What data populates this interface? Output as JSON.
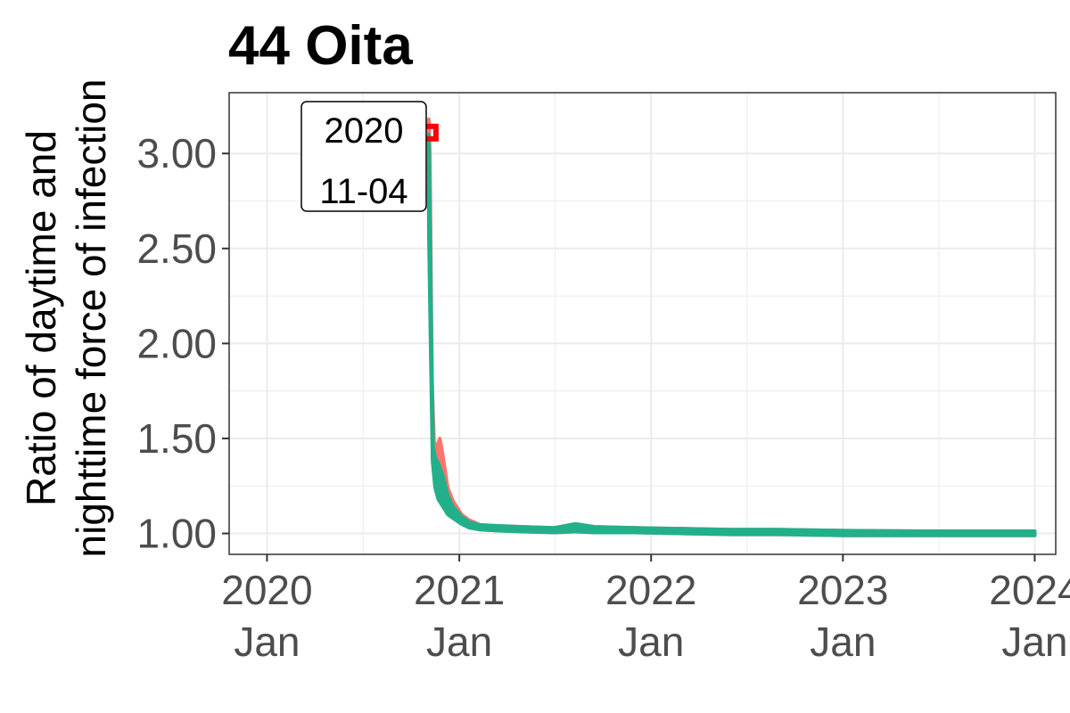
{
  "chart_data": {
    "type": "line",
    "title": "44 Oita",
    "ylabel_lines": [
      "Ratio of daytime and",
      "nighttime force of infection"
    ],
    "xlabel": "",
    "x_ticks": [
      {
        "date": "2020-01-01",
        "line1": "2020",
        "line2": "Jan"
      },
      {
        "date": "2021-01-01",
        "line1": "2021",
        "line2": "Jan"
      },
      {
        "date": "2022-01-01",
        "line1": "2022",
        "line2": "Jan"
      },
      {
        "date": "2023-01-01",
        "line1": "2023",
        "line2": "Jan"
      },
      {
        "date": "2024-01-01",
        "line1": "2024",
        "line2": "Jan"
      }
    ],
    "y_ticks": [
      {
        "value": 1.0,
        "label": "1.00"
      },
      {
        "value": 1.5,
        "label": "1.50"
      },
      {
        "value": 2.0,
        "label": "2.00"
      },
      {
        "value": 2.5,
        "label": "2.50"
      },
      {
        "value": 3.0,
        "label": "3.00"
      }
    ],
    "xlim": [
      "2019-10-21",
      "2024-02-10"
    ],
    "ylim": [
      0.89,
      3.32
    ],
    "grid": true,
    "legend": "none",
    "colors": {
      "band_red": "#f8766d",
      "band_teal": "#22b08a",
      "peak_marker": "#ff0000",
      "panel_border": "#333333",
      "grid": "#ebebeb"
    },
    "annotation": {
      "lines": [
        "2020",
        "11-04"
      ],
      "point": {
        "date": "2020-11-04",
        "value": 3.11
      }
    },
    "series": [
      {
        "color": "#f8766d",
        "band_low": [
          [
            "2020-11-04",
            2.7
          ],
          [
            "2020-11-08",
            1.95
          ],
          [
            "2020-11-12",
            1.38
          ],
          [
            "2020-11-16",
            1.28
          ],
          [
            "2020-11-22",
            1.22
          ],
          [
            "2020-12-01",
            1.17
          ],
          [
            "2020-12-10",
            1.12
          ],
          [
            "2020-12-20",
            1.09
          ],
          [
            "2021-01-05",
            1.06
          ],
          [
            "2021-01-20",
            1.04
          ],
          [
            "2021-02-10",
            1.02
          ],
          [
            "2021-03-15",
            1.015
          ],
          [
            "2021-05-01",
            1.01
          ],
          [
            "2021-07-01",
            1.005
          ],
          [
            "2021-08-10",
            1.01
          ],
          [
            "2021-09-15",
            1.005
          ],
          [
            "2021-12-01",
            1.005
          ],
          [
            "2022-06-01",
            0.995
          ],
          [
            "2022-09-01",
            0.995
          ],
          [
            "2023-01-01",
            0.99
          ],
          [
            "2023-06-01",
            0.99
          ],
          [
            "2024-01-01",
            0.99
          ]
        ],
        "band_high": [
          [
            "2020-11-04",
            3.18
          ],
          [
            "2020-11-06",
            3.0
          ],
          [
            "2020-11-08",
            2.4
          ],
          [
            "2020-11-10",
            1.8
          ],
          [
            "2020-11-14",
            1.48
          ],
          [
            "2020-11-18",
            1.45
          ],
          [
            "2020-11-25",
            1.5
          ],
          [
            "2020-12-01",
            1.4
          ],
          [
            "2020-12-10",
            1.24
          ],
          [
            "2020-12-20",
            1.17
          ],
          [
            "2021-01-05",
            1.1
          ],
          [
            "2021-01-20",
            1.07
          ],
          [
            "2021-02-10",
            1.045
          ],
          [
            "2021-03-15",
            1.04
          ],
          [
            "2021-05-01",
            1.035
          ],
          [
            "2021-07-01",
            1.03
          ],
          [
            "2021-08-10",
            1.05
          ],
          [
            "2021-09-15",
            1.035
          ],
          [
            "2021-12-01",
            1.03
          ],
          [
            "2022-06-01",
            1.02
          ],
          [
            "2022-09-01",
            1.02
          ],
          [
            "2023-01-01",
            1.015
          ],
          [
            "2023-06-01",
            1.012
          ],
          [
            "2024-01-01",
            1.012
          ]
        ]
      },
      {
        "color": "#22b08a",
        "band_low": [
          [
            "2020-11-04",
            2.6
          ],
          [
            "2020-11-07",
            2.05
          ],
          [
            "2020-11-11",
            1.38
          ],
          [
            "2020-11-16",
            1.24
          ],
          [
            "2020-11-22",
            1.18
          ],
          [
            "2020-12-01",
            1.14
          ],
          [
            "2020-12-10",
            1.1
          ],
          [
            "2020-12-20",
            1.08
          ],
          [
            "2021-01-05",
            1.05
          ],
          [
            "2021-01-20",
            1.03
          ],
          [
            "2021-02-10",
            1.02
          ],
          [
            "2021-03-15",
            1.015
          ],
          [
            "2021-05-01",
            1.01
          ],
          [
            "2021-07-01",
            1.005
          ],
          [
            "2021-08-10",
            1.01
          ],
          [
            "2021-09-15",
            1.005
          ],
          [
            "2021-12-01",
            1.005
          ],
          [
            "2022-06-01",
            0.995
          ],
          [
            "2022-09-01",
            0.995
          ],
          [
            "2023-01-01",
            0.99
          ],
          [
            "2023-06-01",
            0.99
          ],
          [
            "2024-01-01",
            0.99
          ]
        ],
        "band_high": [
          [
            "2020-11-04",
            3.1
          ],
          [
            "2020-11-06",
            2.7
          ],
          [
            "2020-11-09",
            2.0
          ],
          [
            "2020-11-12",
            1.46
          ],
          [
            "2020-11-16",
            1.4
          ],
          [
            "2020-11-22",
            1.37
          ],
          [
            "2020-12-01",
            1.3
          ],
          [
            "2020-12-10",
            1.2
          ],
          [
            "2020-12-20",
            1.14
          ],
          [
            "2021-01-05",
            1.09
          ],
          [
            "2021-01-20",
            1.06
          ],
          [
            "2021-02-10",
            1.045
          ],
          [
            "2021-03-15",
            1.04
          ],
          [
            "2021-05-01",
            1.035
          ],
          [
            "2021-07-01",
            1.03
          ],
          [
            "2021-08-10",
            1.05
          ],
          [
            "2021-09-15",
            1.035
          ],
          [
            "2021-12-01",
            1.03
          ],
          [
            "2022-06-01",
            1.02
          ],
          [
            "2022-09-01",
            1.02
          ],
          [
            "2023-01-01",
            1.015
          ],
          [
            "2023-06-01",
            1.012
          ],
          [
            "2024-01-01",
            1.012
          ]
        ]
      }
    ]
  }
}
